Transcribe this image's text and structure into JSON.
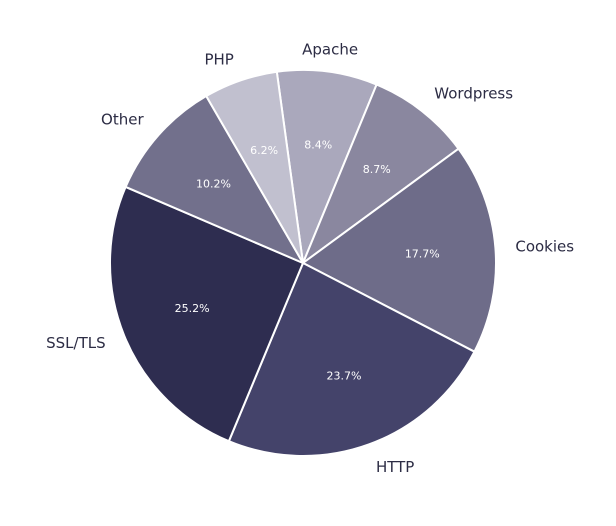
{
  "chart_data": {
    "type": "pie",
    "title": "",
    "categories": [
      "Apache",
      "Wordpress",
      "Cookies",
      "HTTP",
      "SSL/TLS",
      "Other",
      "PHP"
    ],
    "values": [
      8.4,
      8.7,
      17.7,
      23.7,
      25.2,
      10.2,
      6.2
    ],
    "value_labels": [
      "8.4%",
      "8.7%",
      "17.7%",
      "23.7%",
      "25.2%",
      "10.2%",
      "6.2%"
    ],
    "colors": [
      "#aaa8bc",
      "#8a879f",
      "#6e6c89",
      "#44436a",
      "#2e2d50",
      "#72708c",
      "#c1c0cf"
    ],
    "legend": "none"
  }
}
